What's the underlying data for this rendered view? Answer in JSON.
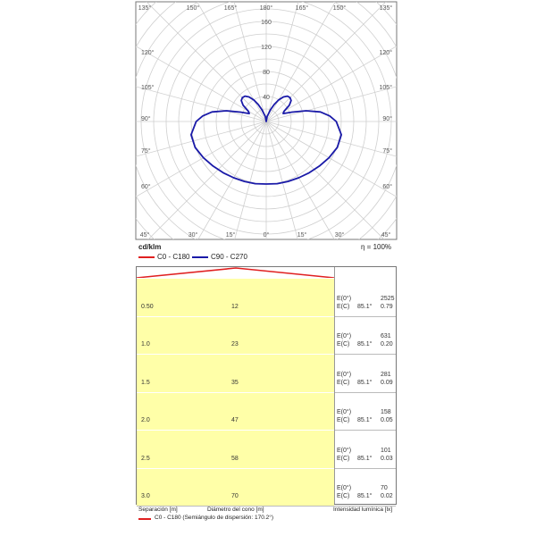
{
  "polar": {
    "angle_labels_top": [
      "135°",
      "150°",
      "165°",
      "180°",
      "165°",
      "150°",
      "135°"
    ],
    "angle_labels_bottom": [
      "45°",
      "30°",
      "15°",
      "0°",
      "15°",
      "30°",
      "45°"
    ],
    "side_labels": [
      "120°",
      "105°",
      "90°",
      "75°",
      "60°"
    ],
    "radial_labels": [
      "160",
      "120",
      "80",
      "40"
    ],
    "unit_label": "cd/klm",
    "efficiency_label": "η = 100%"
  },
  "legend": {
    "c0_label": "C0 - C180",
    "c90_label": "C90 - C270",
    "c0_color": "#e02020",
    "c90_color": "#1a1aa8"
  },
  "chart_data": [
    {
      "type": "polar",
      "title": "",
      "unit": "cd/klm",
      "radial_ticks": [
        40,
        80,
        120,
        160
      ],
      "radial_max": 180,
      "grid": true,
      "series": [
        {
          "name": "C90 - C270",
          "color": "#1a1aa8",
          "angles_deg": [
            0,
            10,
            20,
            30,
            40,
            50,
            60,
            70,
            80,
            90,
            95,
            100,
            105,
            110,
            115,
            120,
            125,
            130,
            135,
            140,
            145,
            150,
            155,
            160,
            170,
            180
          ],
          "values": [
            100,
            101,
            102,
            104,
            107,
            111,
            116,
            121,
            122,
            112,
            102,
            88,
            66,
            44,
            30,
            33,
            45,
            52,
            54,
            53,
            48,
            40,
            30,
            20,
            8,
            0
          ]
        },
        {
          "name": "C0 - C180",
          "color": "#e02020",
          "angles_deg": [],
          "values": []
        }
      ]
    },
    {
      "type": "table",
      "title": "",
      "columns": [
        "Separación [m]",
        "Diámetro del cono [m]",
        "Intensidad lumínica [lx]"
      ],
      "rows": [
        {
          "separation": "0.50",
          "diameter": "12",
          "e0_label": "E(0°)",
          "e0": "2525",
          "eang_label": "E(C)",
          "angle": "85.1°",
          "eang": "0.79"
        },
        {
          "separation": "1.0",
          "diameter": "23",
          "e0_label": "E(0°)",
          "e0": "631",
          "eang_label": "E(C)",
          "angle": "85.1°",
          "eang": "0.20"
        },
        {
          "separation": "1.5",
          "diameter": "35",
          "e0_label": "E(0°)",
          "e0": "281",
          "eang_label": "E(C)",
          "angle": "85.1°",
          "eang": "0.09"
        },
        {
          "separation": "2.0",
          "diameter": "47",
          "e0_label": "E(0°)",
          "e0": "158",
          "eang_label": "E(C)",
          "angle": "85.1°",
          "eang": "0.05"
        },
        {
          "separation": "2.5",
          "diameter": "58",
          "e0_label": "E(0°)",
          "e0": "101",
          "eang_label": "E(C)",
          "angle": "85.1°",
          "eang": "0.03"
        },
        {
          "separation": "3.0",
          "diameter": "70",
          "e0_label": "E(0°)",
          "e0": "70",
          "eang_label": "E(C)",
          "angle": "85.1°",
          "eang": "0.02"
        }
      ],
      "footer_legend": "C0 - C180 (Semiángulo de dispersión: 170.2°)"
    }
  ]
}
